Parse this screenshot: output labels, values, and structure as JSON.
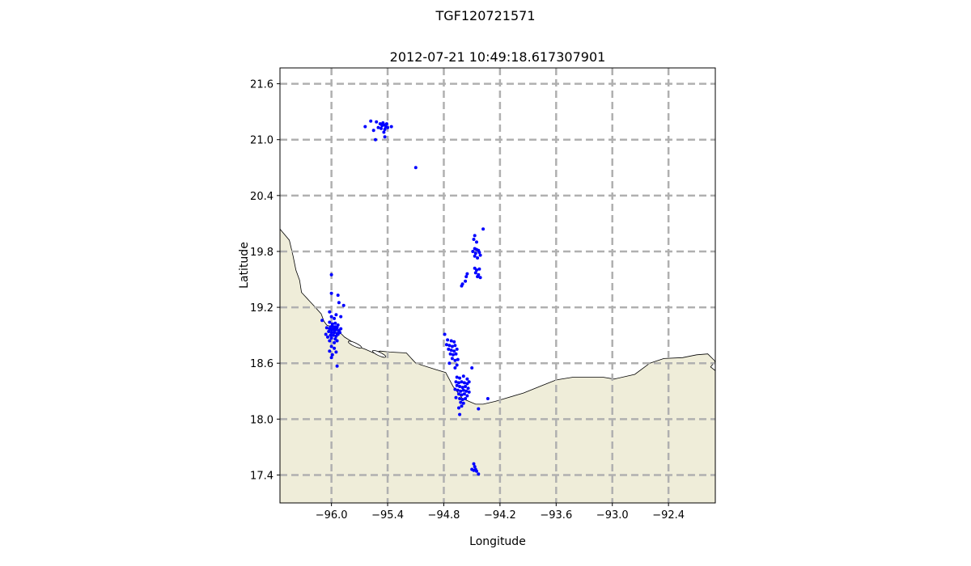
{
  "figure": {
    "suptitle": "TGF120721571"
  },
  "chart_data": {
    "type": "scatter",
    "title": "2012-07-21 10:49:18.617307901",
    "xlabel": "Longitude",
    "ylabel": "Latitude",
    "xlim": [
      -96.55,
      -91.9
    ],
    "ylim": [
      17.1,
      21.77
    ],
    "xticks": [
      -96.0,
      -95.4,
      -94.8,
      -94.2,
      -93.6,
      -93.0,
      -92.4
    ],
    "xtick_labels": [
      "−96.0",
      "−95.4",
      "−94.8",
      "−94.2",
      "−93.6",
      "−93.0",
      "−92.4"
    ],
    "yticks": [
      17.4,
      18.0,
      18.6,
      19.2,
      19.8,
      20.4,
      21.0,
      21.6
    ],
    "ytick_labels": [
      "17.4",
      "18.0",
      "18.6",
      "19.2",
      "19.8",
      "20.4",
      "21.0",
      "21.6"
    ],
    "grid": true,
    "colors": {
      "land": "#efedd9",
      "coastline": "#000000",
      "points": "#0000ff",
      "grid": "#b0b0b0"
    },
    "coastline": [
      [
        -96.55,
        20.04
      ],
      [
        -96.45,
        19.92
      ],
      [
        -96.41,
        19.75
      ],
      [
        -96.38,
        19.6
      ],
      [
        -96.34,
        19.49
      ],
      [
        -96.32,
        19.36
      ],
      [
        -96.2,
        19.23
      ],
      [
        -96.11,
        19.13
      ],
      [
        -96.08,
        19.05
      ],
      [
        -96.05,
        19.01
      ],
      [
        -95.98,
        18.98
      ],
      [
        -95.92,
        18.94
      ],
      [
        -95.86,
        18.88
      ],
      [
        -95.78,
        18.83
      ],
      [
        -95.72,
        18.78
      ],
      [
        -95.64,
        18.75
      ],
      [
        -95.55,
        18.71
      ],
      [
        -95.48,
        18.73
      ],
      [
        -95.38,
        18.72
      ],
      [
        -95.2,
        18.71
      ],
      [
        -95.1,
        18.6
      ],
      [
        -94.88,
        18.53
      ],
      [
        -94.78,
        18.5
      ],
      [
        -94.7,
        18.35
      ],
      [
        -94.6,
        18.22
      ],
      [
        -94.46,
        18.16
      ],
      [
        -94.38,
        18.16
      ],
      [
        -94.25,
        18.19
      ],
      [
        -93.95,
        18.28
      ],
      [
        -93.75,
        18.36
      ],
      [
        -93.6,
        18.42
      ],
      [
        -93.42,
        18.45
      ],
      [
        -93.1,
        18.45
      ],
      [
        -92.98,
        18.43
      ],
      [
        -92.76,
        18.48
      ],
      [
        -92.6,
        18.6
      ],
      [
        -92.45,
        18.65
      ],
      [
        -92.25,
        18.66
      ],
      [
        -92.1,
        18.69
      ],
      [
        -91.98,
        18.7
      ],
      [
        -91.9,
        18.62
      ],
      [
        -91.95,
        18.56
      ],
      [
        -91.9,
        18.52
      ]
    ],
    "series": [
      {
        "values_xy": [
          [
            -96.0,
            19.55
          ],
          [
            -96.0,
            19.35
          ],
          [
            -95.93,
            19.33
          ],
          [
            -95.92,
            19.25
          ],
          [
            -95.87,
            19.22
          ],
          [
            -96.02,
            19.15
          ],
          [
            -96.0,
            19.1
          ],
          [
            -95.97,
            19.08
          ],
          [
            -95.95,
            19.12
          ],
          [
            -95.9,
            19.1
          ],
          [
            -96.1,
            19.06
          ],
          [
            -96.02,
            19.04
          ],
          [
            -95.99,
            19.02
          ],
          [
            -95.96,
            19.03
          ],
          [
            -95.93,
            19.01
          ],
          [
            -96.05,
            18.98
          ],
          [
            -96.02,
            18.97
          ],
          [
            -96.0,
            18.96
          ],
          [
            -95.98,
            18.97
          ],
          [
            -95.95,
            18.96
          ],
          [
            -95.92,
            18.95
          ],
          [
            -95.9,
            18.97
          ],
          [
            -96.03,
            18.94
          ],
          [
            -96.0,
            18.93
          ],
          [
            -95.97,
            18.93
          ],
          [
            -95.94,
            18.92
          ],
          [
            -95.91,
            18.93
          ],
          [
            -96.06,
            18.91
          ],
          [
            -96.01,
            18.9
          ],
          [
            -95.98,
            18.9
          ],
          [
            -95.95,
            18.89
          ],
          [
            -95.93,
            18.91
          ],
          [
            -96.04,
            18.88
          ],
          [
            -96.0,
            18.87
          ],
          [
            -95.96,
            18.86
          ],
          [
            -95.99,
            19.0
          ],
          [
            -95.96,
            18.99
          ],
          [
            -95.94,
            18.98
          ],
          [
            -96.01,
            18.99
          ],
          [
            -95.97,
            18.95
          ],
          [
            -96.02,
            18.84
          ],
          [
            -95.97,
            18.82
          ],
          [
            -95.94,
            18.84
          ],
          [
            -96.0,
            18.78
          ],
          [
            -95.97,
            18.76
          ],
          [
            -96.02,
            18.73
          ],
          [
            -95.95,
            18.72
          ],
          [
            -95.99,
            18.69
          ],
          [
            -96.0,
            18.66
          ],
          [
            -95.94,
            18.57
          ]
        ]
      },
      {
        "values_xy": [
          [
            -95.64,
            21.14
          ],
          [
            -95.58,
            21.2
          ],
          [
            -95.52,
            21.19
          ],
          [
            -95.48,
            21.17
          ],
          [
            -95.46,
            21.15
          ],
          [
            -95.44,
            21.16
          ],
          [
            -95.42,
            21.14
          ],
          [
            -95.5,
            21.13
          ],
          [
            -95.47,
            21.12
          ],
          [
            -95.43,
            21.11
          ],
          [
            -95.4,
            21.13
          ],
          [
            -95.36,
            21.14
          ],
          [
            -95.45,
            21.18
          ],
          [
            -95.41,
            21.17
          ],
          [
            -95.55,
            21.1
          ],
          [
            -95.53,
            21.0
          ],
          [
            -95.44,
            21.08
          ],
          [
            -95.43,
            21.03
          ],
          [
            -95.1,
            20.7
          ]
        ]
      },
      {
        "values_xy": [
          [
            -94.38,
            20.04
          ],
          [
            -94.47,
            19.97
          ],
          [
            -94.48,
            19.93
          ],
          [
            -94.45,
            19.9
          ],
          [
            -94.47,
            19.83
          ],
          [
            -94.45,
            19.82
          ],
          [
            -94.43,
            19.81
          ],
          [
            -94.49,
            19.8
          ],
          [
            -94.46,
            19.78
          ],
          [
            -94.42,
            19.79
          ],
          [
            -94.47,
            19.75
          ],
          [
            -94.44,
            19.73
          ],
          [
            -94.41,
            19.76
          ],
          [
            -94.47,
            19.62
          ],
          [
            -94.45,
            19.6
          ],
          [
            -94.42,
            19.61
          ],
          [
            -94.46,
            19.57
          ],
          [
            -94.43,
            19.55
          ],
          [
            -94.44,
            19.53
          ],
          [
            -94.41,
            19.52
          ],
          [
            -94.55,
            19.56
          ],
          [
            -94.56,
            19.53
          ],
          [
            -94.57,
            19.48
          ],
          [
            -94.6,
            19.45
          ],
          [
            -94.61,
            19.43
          ]
        ]
      },
      {
        "values_xy": [
          [
            -94.79,
            18.91
          ],
          [
            -94.76,
            18.85
          ],
          [
            -94.72,
            18.84
          ],
          [
            -94.69,
            18.83
          ],
          [
            -94.77,
            18.8
          ],
          [
            -94.74,
            18.79
          ],
          [
            -94.71,
            18.78
          ],
          [
            -94.68,
            18.79
          ],
          [
            -94.75,
            18.75
          ],
          [
            -94.72,
            18.74
          ],
          [
            -94.69,
            18.73
          ],
          [
            -94.66,
            18.75
          ],
          [
            -94.73,
            18.7
          ],
          [
            -94.7,
            18.69
          ],
          [
            -94.67,
            18.7
          ],
          [
            -94.71,
            18.65
          ],
          [
            -94.68,
            18.63
          ],
          [
            -94.65,
            18.64
          ],
          [
            -94.74,
            18.6
          ],
          [
            -94.66,
            18.58
          ],
          [
            -94.68,
            18.55
          ],
          [
            -94.5,
            18.55
          ]
        ]
      },
      {
        "values_xy": [
          [
            -94.66,
            18.45
          ],
          [
            -94.63,
            18.44
          ],
          [
            -94.59,
            18.46
          ],
          [
            -94.55,
            18.43
          ],
          [
            -94.67,
            18.4
          ],
          [
            -94.64,
            18.39
          ],
          [
            -94.61,
            18.4
          ],
          [
            -94.58,
            18.39
          ],
          [
            -94.55,
            18.38
          ],
          [
            -94.53,
            18.4
          ],
          [
            -94.66,
            18.36
          ],
          [
            -94.63,
            18.35
          ],
          [
            -94.6,
            18.34
          ],
          [
            -94.57,
            18.35
          ],
          [
            -94.54,
            18.33
          ],
          [
            -94.68,
            18.32
          ],
          [
            -94.65,
            18.31
          ],
          [
            -94.62,
            18.3
          ],
          [
            -94.59,
            18.31
          ],
          [
            -94.56,
            18.3
          ],
          [
            -94.53,
            18.29
          ],
          [
            -94.64,
            18.27
          ],
          [
            -94.61,
            18.26
          ],
          [
            -94.58,
            18.27
          ],
          [
            -94.55,
            18.25
          ],
          [
            -94.67,
            18.23
          ],
          [
            -94.63,
            18.22
          ],
          [
            -94.6,
            18.21
          ],
          [
            -94.57,
            18.22
          ],
          [
            -94.62,
            18.18
          ],
          [
            -94.59,
            18.17
          ],
          [
            -94.61,
            18.14
          ],
          [
            -94.64,
            18.12
          ],
          [
            -94.63,
            18.05
          ],
          [
            -94.43,
            18.11
          ],
          [
            -94.33,
            18.22
          ]
        ]
      },
      {
        "values_xy": [
          [
            -94.48,
            17.52
          ],
          [
            -94.47,
            17.49
          ],
          [
            -94.5,
            17.46
          ],
          [
            -94.48,
            17.45
          ],
          [
            -94.46,
            17.46
          ],
          [
            -94.45,
            17.44
          ],
          [
            -94.43,
            17.41
          ]
        ]
      }
    ]
  }
}
